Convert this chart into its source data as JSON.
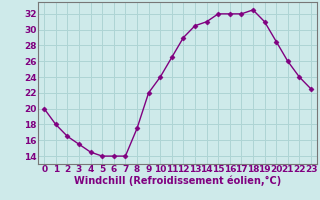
{
  "x": [
    0,
    1,
    2,
    3,
    4,
    5,
    6,
    7,
    8,
    9,
    10,
    11,
    12,
    13,
    14,
    15,
    16,
    17,
    18,
    19,
    20,
    21,
    22,
    23
  ],
  "y": [
    20,
    18,
    16.5,
    15.5,
    14.5,
    14,
    14,
    14,
    17.5,
    22,
    24,
    26.5,
    29,
    30.5,
    31,
    32,
    32,
    32,
    32.5,
    31,
    28.5,
    26,
    24,
    22.5
  ],
  "line_color": "#800080",
  "marker": "D",
  "marker_size": 2.5,
  "bg_color": "#ceeaea",
  "grid_color": "#aed4d4",
  "xlabel": "Windchill (Refroidissement éolien,°C)",
  "xlabel_fontsize": 7,
  "tick_label_fontsize": 6.5,
  "ylim": [
    13,
    33.5
  ],
  "yticks": [
    14,
    16,
    18,
    20,
    22,
    24,
    26,
    28,
    30,
    32
  ],
  "xlim": [
    -0.5,
    23.5
  ],
  "spine_color": "#777777",
  "linewidth": 1.0
}
